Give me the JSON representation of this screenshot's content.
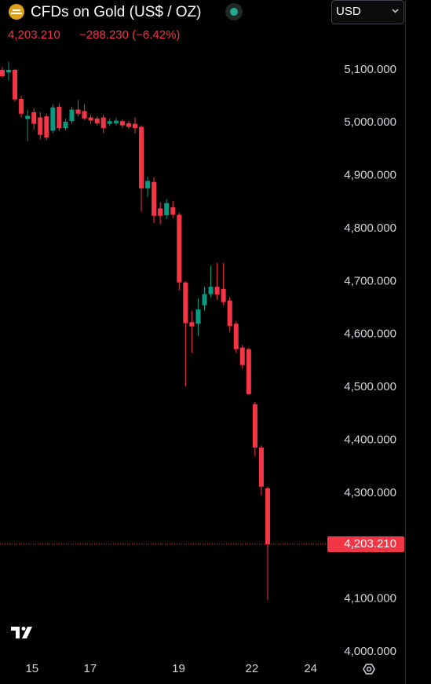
{
  "chart_data": {
    "type": "candlestick",
    "title": "CFDs on Gold (US$ / OZ)",
    "price": "4,203.210",
    "change": "−288.230 (−6.42%)",
    "currency": "USD",
    "x": [
      0,
      1,
      2,
      3,
      4,
      5,
      6,
      7,
      8,
      9,
      10,
      11,
      12,
      13,
      14,
      15,
      16,
      17,
      18,
      19,
      20,
      21,
      22,
      23,
      24,
      25,
      26,
      27,
      28,
      29,
      30,
      31,
      32,
      33,
      34,
      35,
      36,
      37,
      38,
      39,
      40,
      41,
      42
    ],
    "series": [
      {
        "up_color": "#089981",
        "down_color": "#f23645",
        "open": [
          5100,
          5095,
          5100,
          5045,
          5007,
          5020,
          5010,
          5012,
          4985,
          5030,
          4990,
          5003,
          5025,
          5022,
          5010,
          5008,
          5010,
          4998,
          4999,
          5003,
          4999,
          4998,
          4992,
          4876,
          4888,
          4838,
          4825,
          4840,
          4826,
          4698,
          4623,
          4620,
          4655,
          4676,
          4690,
          4686,
          4664,
          4620,
          4575,
          4572,
          4468,
          4386,
          4309
        ],
        "high": [
          5106,
          5115,
          5102,
          5051,
          5024,
          5027,
          5020,
          5017,
          5035,
          5037,
          5008,
          5030,
          5043,
          5035,
          5015,
          5012,
          5015,
          5008,
          5009,
          5006,
          5003,
          5010,
          4995,
          4898,
          4897,
          4850,
          4855,
          4852,
          4830,
          4700,
          4645,
          4668,
          4690,
          4730,
          4735,
          4735,
          4670,
          4625,
          4580,
          4575,
          4472,
          4390,
          4312
        ],
        "low": [
          5085,
          5080,
          5040,
          5010,
          4965,
          4987,
          4968,
          4967,
          4980,
          4985,
          4985,
          4998,
          5012,
          5005,
          4998,
          4995,
          4980,
          4994,
          4995,
          4990,
          4988,
          4980,
          4832,
          4860,
          4810,
          4808,
          4818,
          4820,
          4683,
          4502,
          4565,
          4597,
          4645,
          4670,
          4665,
          4655,
          4605,
          4565,
          4535,
          4485,
          4370,
          4295,
          4097
        ],
        "close": [
          5088,
          5100,
          5044,
          5017,
          5013,
          4998,
          4977,
          4972,
          5029,
          4990,
          5002,
          5025,
          5017,
          5008,
          5004,
          4999,
          4990,
          5003,
          5004,
          4995,
          4992,
          4990,
          4876,
          4890,
          4824,
          4824,
          4848,
          4826,
          4698,
          4621,
          4615,
          4647,
          4676,
          4690,
          4675,
          4661,
          4616,
          4572,
          4542,
          4487,
          4386,
          4312,
          4203.21
        ]
      }
    ],
    "last_price": {
      "value": 4203.21,
      "label": "4,203.210"
    },
    "xlim": [
      -0.37,
      51.2
    ],
    "xticks": [
      {
        "value": 4.7,
        "label": "15"
      },
      {
        "value": 13.9,
        "label": "17"
      },
      {
        "value": 27.9,
        "label": "19"
      },
      {
        "value": 39.5,
        "label": "22"
      },
      {
        "value": 48.8,
        "label": "24"
      }
    ],
    "ylim": [
      3985,
      5232
    ],
    "yticks": [
      {
        "value": 4000,
        "label": "4,000.000"
      },
      {
        "value": 4100,
        "label": "4,100.000"
      },
      {
        "value": 4300,
        "label": "4,300.000"
      },
      {
        "value": 4400,
        "label": "4,400.000"
      },
      {
        "value": 4500,
        "label": "4,500.000"
      },
      {
        "value": 4600,
        "label": "4,600.000"
      },
      {
        "value": 4700,
        "label": "4,700.000"
      },
      {
        "value": 4800,
        "label": "4,800.000"
      },
      {
        "value": 4900,
        "label": "4,900.000"
      },
      {
        "value": 5000,
        "label": "5,000.000"
      },
      {
        "value": 5100,
        "label": "5,100.000"
      }
    ],
    "grid": false
  }
}
